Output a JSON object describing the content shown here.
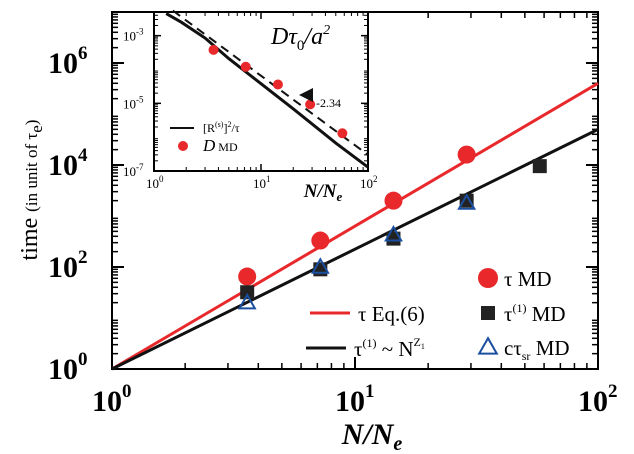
{
  "chart_data": [
    {
      "type": "line",
      "xlabel_main": "N/N",
      "xlabel_sub": "e",
      "ylabel_main": "time",
      "ylabel_paren": "(in unit of τ",
      "ylabel_sub": "e",
      "ylabel_close": ")",
      "xscale": "log",
      "yscale": "log",
      "xlim": [
        1,
        100
      ],
      "ylim": [
        1,
        10000000.0
      ],
      "x_ticks": [
        {
          "value": 1,
          "base": "10",
          "exp": "0"
        },
        {
          "value": 10,
          "base": "10",
          "exp": "1"
        },
        {
          "value": 100,
          "base": "10",
          "exp": "2"
        }
      ],
      "y_ticks": [
        {
          "value": 1,
          "base": "10",
          "exp": "0"
        },
        {
          "value": 100,
          "base": "10",
          "exp": "2"
        },
        {
          "value": 10000,
          "base": "10",
          "exp": "4"
        },
        {
          "value": 1000000,
          "base": "10",
          "exp": "6"
        }
      ],
      "lines": [
        {
          "name": "τ  Eq.(6)",
          "color": "#e8282b",
          "x": [
            1,
            100
          ],
          "y": [
            1,
            400000
          ]
        },
        {
          "name": "τ(1) ~ N^Z1",
          "color": "#111111",
          "x": [
            1,
            100
          ],
          "y": [
            1,
            50000
          ]
        }
      ],
      "series": [
        {
          "name": "τ    MD",
          "marker": "circle",
          "color": "#e8282b",
          "x": [
            3.6,
            7.2,
            14.4,
            28.8
          ],
          "y": [
            65,
            330,
            2000,
            16000
          ]
        },
        {
          "name": "τ(1)  MD",
          "marker": "square",
          "color": "#222222",
          "x": [
            3.6,
            7.2,
            14.4,
            28.8,
            57.6
          ],
          "y": [
            32,
            90,
            360,
            2000,
            9500
          ]
        },
        {
          "name": "cτsr MD",
          "marker": "triangle",
          "color": "#1a4fa0",
          "x": [
            3.6,
            7.2,
            14.4,
            28.8
          ],
          "y": [
            20,
            100,
            430,
            1800
          ]
        }
      ],
      "legend": [
        {
          "marker": "circle",
          "color": "#e8282b",
          "label": "τ    MD"
        },
        {
          "marker": "square",
          "color": "#222222",
          "label_pre": "τ",
          "label_sup": "(1)",
          "label_post": "  MD"
        },
        {
          "marker": "triangle",
          "color": "#1a4fa0",
          "label_pre": "cτ",
          "label_sub": "sr",
          "label_post": " MD"
        },
        {
          "marker": "line",
          "color": "#e8282b",
          "label": "τ   Eq.(6)"
        },
        {
          "marker": "line",
          "color": "#111111",
          "label_pre": "τ",
          "label_sup": "(1)",
          "label_mid": " ~ N",
          "label_sup2": "Z",
          "label_sub2": "1"
        }
      ],
      "legend_position": "bottom-right"
    },
    {
      "type": "line",
      "title_pre": "Dτ",
      "title_sub": "0",
      "title_post": "/a",
      "title_sup": "2",
      "xlabel_main": "N/N",
      "xlabel_sub": "e",
      "xscale": "log",
      "yscale": "log",
      "xlim": [
        1,
        100
      ],
      "ylim": [
        1e-07,
        0.005
      ],
      "x_ticks": [
        {
          "value": 1,
          "base": "10",
          "exp": "0"
        },
        {
          "value": 10,
          "base": "10",
          "exp": "1"
        },
        {
          "value": 100,
          "base": "10",
          "exp": "2"
        }
      ],
      "y_ticks": [
        {
          "value": 0.001,
          "base": "10",
          "exp": "-3"
        },
        {
          "value": 1e-05,
          "base": "10",
          "exp": "-5"
        },
        {
          "value": 1e-07,
          "base": "10",
          "exp": "-7"
        }
      ],
      "lines": [
        {
          "name": "[R(s)]2/τ",
          "color": "#111111",
          "style": "solid",
          "x": [
            1.3,
            1.8,
            3,
            5,
            10,
            20,
            50,
            100
          ],
          "y": [
            0.0045,
            0.0025,
            0.00085,
            0.00021,
            3.8e-05,
            6.9e-06,
            6.7e-07,
            1.3e-07
          ]
        },
        {
          "name": "slope guide",
          "color": "#111111",
          "style": "dashed",
          "x": [
            1.5,
            100
          ],
          "y": [
            0.0055,
            3e-07
          ]
        }
      ],
      "annotation": "-2.34",
      "series": [
        {
          "name": "D   MD",
          "marker": "circle",
          "color": "#e8282b",
          "x": [
            3.6,
            7.2,
            14.4,
            28.8,
            57.6
          ],
          "y": [
            0.00038,
            0.00012,
            3.6e-05,
            9.3e-06,
            1.3e-06
          ]
        }
      ],
      "legend": [
        {
          "marker": "line",
          "color": "#111111",
          "label_pre": "[R",
          "label_sup": "(s)",
          "label_mid": "]",
          "label_sup2": "2",
          "label_post": "/τ"
        },
        {
          "marker": "circle",
          "color": "#e8282b",
          "label_italic": "D",
          "label_post": "      MD"
        }
      ],
      "legend_position": "bottom-left"
    }
  ]
}
